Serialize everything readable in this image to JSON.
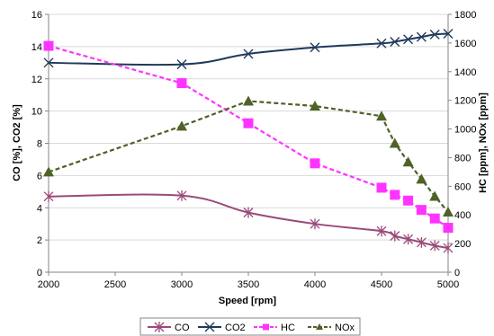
{
  "chart_data": {
    "type": "line",
    "xlabel": "Speed [rpm]",
    "ylabel_left": "CO [%], CO2 [%]",
    "ylabel_right": "HC [ppm], NOx [ppm]",
    "xlim": [
      2000,
      5000
    ],
    "ylim_left": [
      0,
      16
    ],
    "ylim_right": [
      0,
      1800
    ],
    "x_ticks": [
      "2000",
      "2500",
      "3000",
      "3500",
      "4000",
      "4500",
      "5000"
    ],
    "y_left_ticks": [
      "0",
      "2",
      "4",
      "6",
      "8",
      "10",
      "12",
      "14",
      "16"
    ],
    "y_right_ticks": [
      "0",
      "200",
      "400",
      "600",
      "800",
      "1000",
      "1200",
      "1400",
      "1600",
      "1800"
    ],
    "grid": "horizontal",
    "legend_position": "bottom",
    "series": [
      {
        "name": "CO",
        "axis": "left",
        "color": "#9b4a7a",
        "marker": "star",
        "line": "solid",
        "x": [
          2000,
          3000,
          3500,
          4000,
          4500,
          4600,
          4700,
          4800,
          4900,
          5000
        ],
        "y": [
          4.7,
          4.75,
          3.7,
          3.0,
          2.55,
          2.25,
          2.05,
          1.85,
          1.65,
          1.5
        ]
      },
      {
        "name": "CO2",
        "axis": "left",
        "color": "#1f3a5a",
        "marker": "cross",
        "line": "solid",
        "x": [
          2000,
          3000,
          3500,
          4000,
          4500,
          4600,
          4700,
          4800,
          4900,
          5000
        ],
        "y": [
          13.0,
          12.9,
          13.55,
          13.95,
          14.2,
          14.3,
          14.45,
          14.6,
          14.75,
          14.8
        ]
      },
      {
        "name": "HC",
        "axis": "right",
        "color": "#ff33ff",
        "marker": "square",
        "line": "dashed",
        "x": [
          2000,
          3000,
          3500,
          4000,
          4500,
          4600,
          4700,
          4800,
          4900,
          5000
        ],
        "y": [
          1580,
          1320,
          1040,
          760,
          590,
          540,
          500,
          435,
          375,
          310
        ]
      },
      {
        "name": "NOx",
        "axis": "right",
        "color": "#4f6228",
        "marker": "triangle",
        "line": "dashed",
        "x": [
          2000,
          3000,
          3500,
          4000,
          4500,
          4600,
          4700,
          4800,
          4900,
          5000
        ],
        "y": [
          700,
          1020,
          1195,
          1160,
          1090,
          900,
          770,
          650,
          530,
          420
        ]
      }
    ]
  }
}
